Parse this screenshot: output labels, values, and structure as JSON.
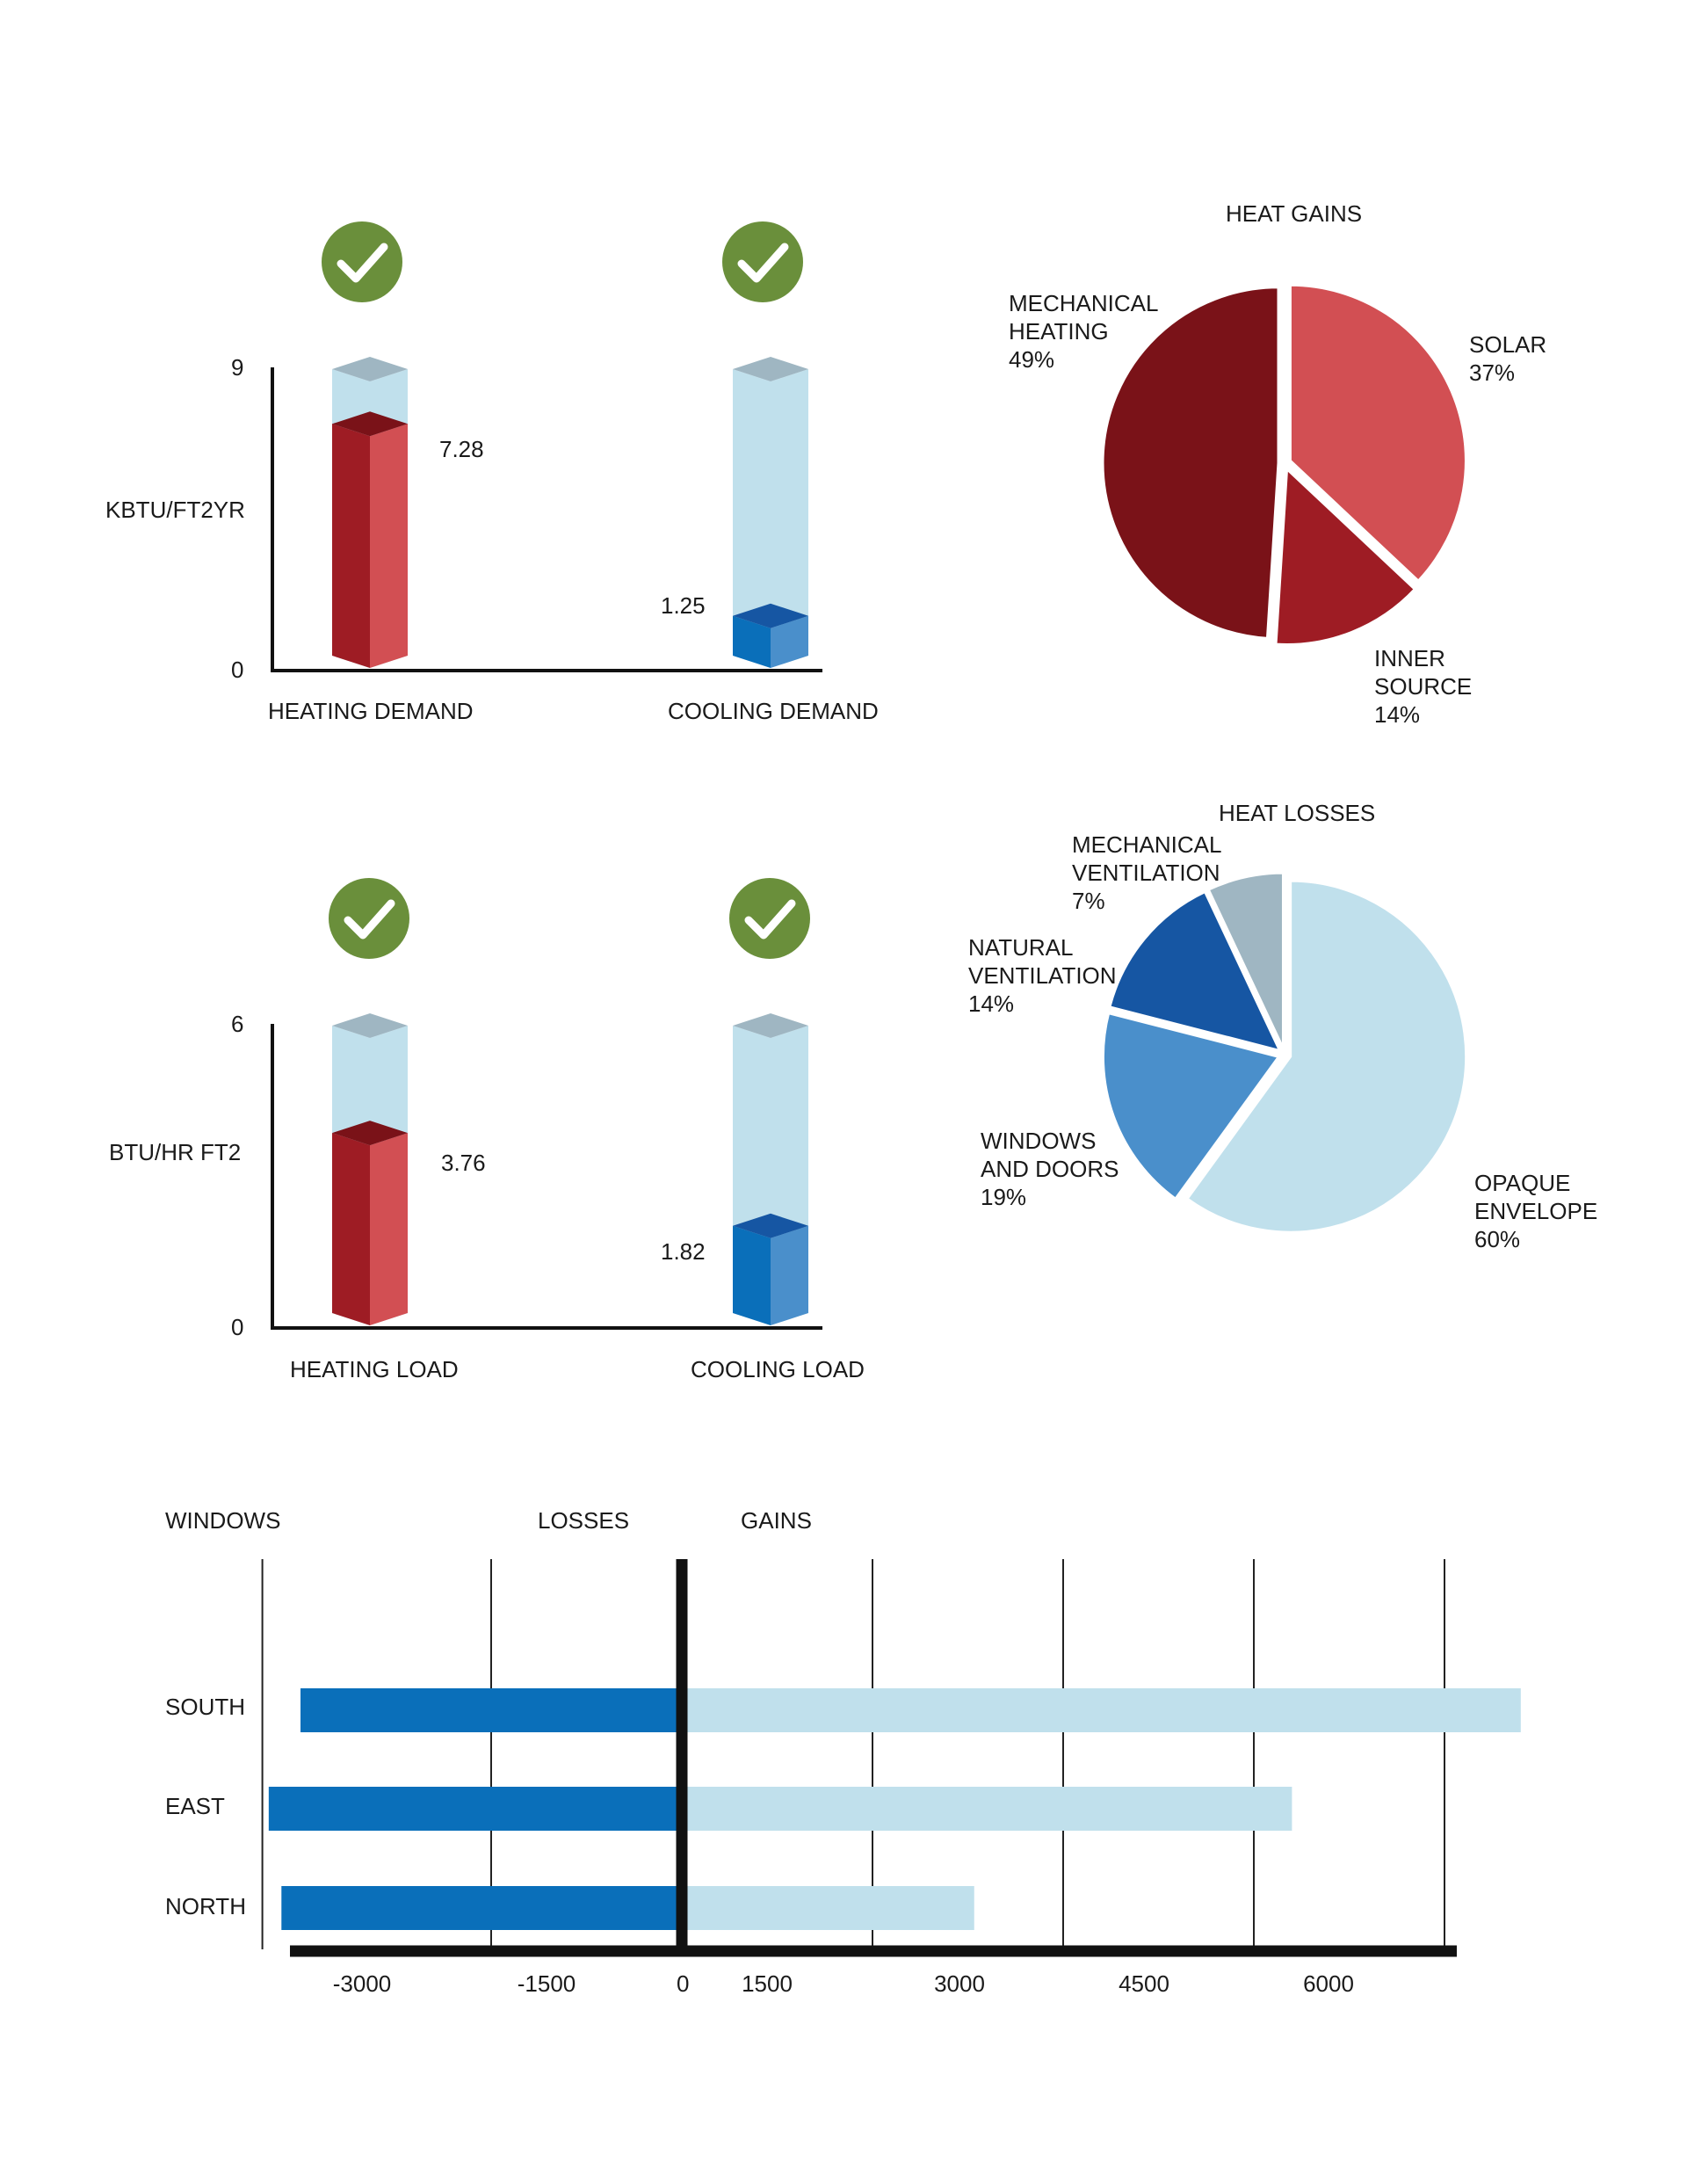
{
  "colors": {
    "heat_red": "#9e1c24",
    "heat_red_light": "#d24f53",
    "heat_red_dark": "#7a1218",
    "cool_blue": "#0a6fba",
    "cool_blue_light": "#4a8fcb",
    "cool_blue_dark": "#1656a3",
    "empty_front": "#c0e0ec",
    "empty_top": "#9fb6c2",
    "check_green": "#6a8f3b",
    "axis": "#111111"
  },
  "chart_data": [
    {
      "type": "bar",
      "style": "3d-columns-with-check-icons",
      "ylabel": "KBTU/FT2YR",
      "ylim": [
        0,
        9
      ],
      "yticks": [
        "0",
        "9"
      ],
      "categories": [
        "HEATING DEMAND",
        "COOLING DEMAND"
      ],
      "values": [
        7.28,
        1.25
      ],
      "value_labels": [
        "7.28",
        "1.25"
      ],
      "bar_colors": [
        "heat",
        "cool"
      ],
      "icons": [
        "check-icon",
        "check-icon"
      ]
    },
    {
      "type": "pie",
      "title": "HEAT GAINS",
      "slices": [
        {
          "name": "SOLAR",
          "value": 37,
          "label": [
            "SOLAR",
            "37%"
          ],
          "color": "#d24f53"
        },
        {
          "name": "INNER SOURCE",
          "value": 14,
          "label": [
            "INNER",
            "SOURCE",
            "14%"
          ],
          "color": "#9e1c24"
        },
        {
          "name": "MECHANICAL HEATING",
          "value": 49,
          "label": [
            "MECHANICAL",
            "HEATING",
            "49%"
          ],
          "color": "#7a1218"
        }
      ]
    },
    {
      "type": "bar",
      "style": "3d-columns-with-check-icons",
      "ylabel": "BTU/HR FT2",
      "ylim": [
        0,
        6
      ],
      "yticks": [
        "0",
        "6"
      ],
      "categories": [
        "HEATING LOAD",
        "COOLING LOAD"
      ],
      "values": [
        3.76,
        1.82
      ],
      "value_labels": [
        "3.76",
        "1.82"
      ],
      "bar_colors": [
        "heat",
        "cool"
      ],
      "icons": [
        "check-icon",
        "check-icon"
      ]
    },
    {
      "type": "pie",
      "title": "HEAT LOSSES",
      "slices": [
        {
          "name": "OPAQUE ENVELOPE",
          "value": 60,
          "label": [
            "OPAQUE",
            "ENVELOPE",
            "60%"
          ],
          "color": "#c0e0ec"
        },
        {
          "name": "WINDOWS AND DOORS",
          "value": 19,
          "label": [
            "WINDOWS",
            "AND DOORS",
            "19%"
          ],
          "color": "#4a8fcb"
        },
        {
          "name": "NATURAL VENTILATION",
          "value": 14,
          "label": [
            "NATURAL",
            "VENTILATION",
            "14%"
          ],
          "color": "#1656a3"
        },
        {
          "name": "MECHANICAL VENTILATION",
          "value": 7,
          "label": [
            "MECHANICAL",
            "VENTILATION",
            "7%"
          ],
          "color": "#9fb6c2"
        }
      ]
    },
    {
      "type": "bar",
      "orientation": "horizontal-diverging",
      "title": "WINDOWS",
      "left_heading": "LOSSES",
      "right_heading": "GAINS",
      "categories": [
        "SOUTH",
        "EAST",
        "NORTH"
      ],
      "series": [
        {
          "name": "LOSSES",
          "values": [
            -3000,
            -3250,
            -3150
          ],
          "color": "#0a6fba"
        },
        {
          "name": "GAINS",
          "values": [
            6600,
            4800,
            2300
          ],
          "color": "#c0e0ec"
        }
      ],
      "xticks": [
        -3000,
        -1500,
        0,
        1500,
        3000,
        4500,
        6000
      ],
      "xtick_labels": [
        "-3000",
        "-1500",
        "0",
        "1500",
        "3000",
        "4500",
        "6000"
      ],
      "xlim": [
        -3300,
        6000
      ],
      "grid": "vertical"
    }
  ]
}
